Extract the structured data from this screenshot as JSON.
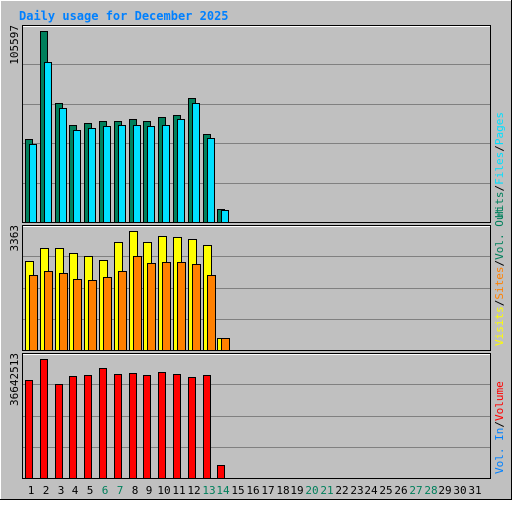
{
  "title": "Daily usage for December 2025",
  "colors": {
    "background": "#c0c0c0",
    "title": "#0080ff",
    "hits": "#00805c",
    "files": "#00e0ff",
    "visits": "#ffff00",
    "sites": "#ff8000",
    "volume": "#ff0000",
    "weekday_label": "#000000",
    "weekend_label": "#00805c"
  },
  "chart_data": [
    {
      "type": "bar",
      "name": "hits-files-pages",
      "ylabel_value": "105597",
      "ymax": 105597,
      "legend": [
        {
          "text": "Hits",
          "color": "#00805c"
        },
        {
          "text": "/",
          "color": "#000000"
        },
        {
          "text": "Files",
          "color": "#00e0ff"
        },
        {
          "text": "/",
          "color": "#000000"
        },
        {
          "text": "Pages",
          "color": "#00e0ff"
        }
      ],
      "series": [
        {
          "name": "Hits",
          "color": "#00805c",
          "values": [
            46000,
            105597,
            65800,
            53900,
            55000,
            56100,
            56100,
            57200,
            56100,
            58300,
            59400,
            68800,
            48600,
            7200,
            null,
            null,
            null,
            null,
            null,
            null,
            null,
            null,
            null,
            null,
            null,
            null,
            null,
            null,
            null,
            null,
            null
          ]
        },
        {
          "name": "Files",
          "color": "#00e0ff",
          "values": [
            43200,
            88700,
            63100,
            50600,
            51700,
            52800,
            53400,
            53900,
            52800,
            53900,
            56700,
            66000,
            46200,
            6600,
            null,
            null,
            null,
            null,
            null,
            null,
            null,
            null,
            null,
            null,
            null,
            null,
            null,
            null,
            null,
            null,
            null
          ]
        }
      ]
    },
    {
      "type": "bar",
      "name": "visits-sites",
      "ylabel_value": "3363",
      "ymax": 3363,
      "legend": [
        {
          "text": "Visits",
          "color": "#ffff00"
        },
        {
          "text": "/",
          "color": "#000000"
        },
        {
          "text": "Sites",
          "color": "#ff8000"
        },
        {
          "text": "/",
          "color": "#000000"
        },
        {
          "text": "Vol. Out",
          "color": "#00805c"
        }
      ],
      "series": [
        {
          "name": "Visits",
          "color": "#ffff00",
          "values": [
            2520,
            2880,
            2880,
            2740,
            2650,
            2540,
            3060,
            3363,
            3060,
            3230,
            3200,
            3150,
            2970,
            330,
            null,
            null,
            null,
            null,
            null,
            null,
            null,
            null,
            null,
            null,
            null,
            null,
            null,
            null,
            null,
            null,
            null
          ]
        },
        {
          "name": "Sites",
          "color": "#ff8000",
          "values": [
            2110,
            2220,
            2180,
            2020,
            1980,
            2060,
            2220,
            2650,
            2450,
            2480,
            2500,
            2430,
            2130,
            330,
            null,
            null,
            null,
            null,
            null,
            null,
            null,
            null,
            null,
            null,
            null,
            null,
            null,
            null,
            null,
            null,
            null
          ]
        }
      ]
    },
    {
      "type": "bar",
      "name": "volume",
      "ylabel_value": "36642513",
      "ymax": 36642513,
      "legend": [
        {
          "text": "Vol. In",
          "color": "#0080ff"
        },
        {
          "text": "/",
          "color": "#000000"
        },
        {
          "text": "Volume",
          "color": "#ff0000"
        }
      ],
      "series": [
        {
          "name": "Volume",
          "color": "#ff0000",
          "values": [
            30200000,
            36642513,
            29000000,
            31300000,
            31600000,
            34000000,
            32000000,
            32300000,
            31600000,
            32600000,
            32000000,
            31200000,
            31600000,
            3900000,
            null,
            null,
            null,
            null,
            null,
            null,
            null,
            null,
            null,
            null,
            null,
            null,
            null,
            null,
            null,
            null,
            null
          ]
        }
      ]
    }
  ],
  "days": [
    {
      "label": "1",
      "weekend": false
    },
    {
      "label": "2",
      "weekend": false
    },
    {
      "label": "3",
      "weekend": false
    },
    {
      "label": "4",
      "weekend": false
    },
    {
      "label": "5",
      "weekend": false
    },
    {
      "label": "6",
      "weekend": true
    },
    {
      "label": "7",
      "weekend": true
    },
    {
      "label": "8",
      "weekend": false
    },
    {
      "label": "9",
      "weekend": false
    },
    {
      "label": "10",
      "weekend": false
    },
    {
      "label": "11",
      "weekend": false
    },
    {
      "label": "12",
      "weekend": false
    },
    {
      "label": "13",
      "weekend": true
    },
    {
      "label": "14",
      "weekend": true
    },
    {
      "label": "15",
      "weekend": false
    },
    {
      "label": "16",
      "weekend": false
    },
    {
      "label": "17",
      "weekend": false
    },
    {
      "label": "18",
      "weekend": false
    },
    {
      "label": "19",
      "weekend": false
    },
    {
      "label": "20",
      "weekend": true
    },
    {
      "label": "21",
      "weekend": true
    },
    {
      "label": "22",
      "weekend": false
    },
    {
      "label": "23",
      "weekend": false
    },
    {
      "label": "24",
      "weekend": false
    },
    {
      "label": "25",
      "weekend": false
    },
    {
      "label": "26",
      "weekend": false
    },
    {
      "label": "27",
      "weekend": true
    },
    {
      "label": "28",
      "weekend": true
    },
    {
      "label": "29",
      "weekend": false
    },
    {
      "label": "30",
      "weekend": false
    },
    {
      "label": "31",
      "weekend": false
    }
  ]
}
